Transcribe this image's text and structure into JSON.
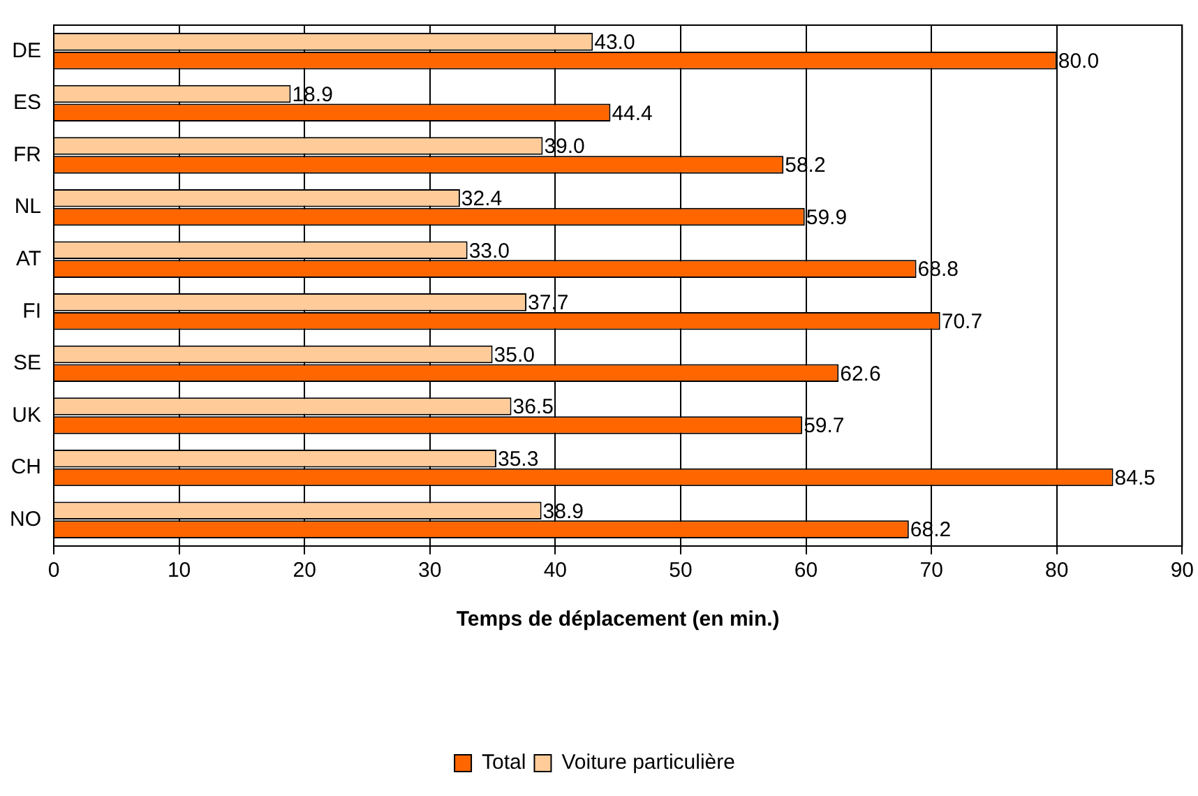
{
  "chart_data": {
    "type": "bar",
    "orientation": "horizontal",
    "xlabel": "Temps de déplacement (en min.)",
    "categories": [
      "DE",
      "ES",
      "FR",
      "NL",
      "AT",
      "FI",
      "SE",
      "UK",
      "CH",
      "NO"
    ],
    "series": [
      {
        "name": "Voiture particulière",
        "color": "#ffcc99",
        "values": [
          43.0,
          18.9,
          39.0,
          32.4,
          33.0,
          37.7,
          35.0,
          36.5,
          35.3,
          38.9
        ],
        "value_labels": [
          "43.0",
          "18.9",
          "39.0",
          "32.4",
          "33.0",
          "37.7",
          "35.0",
          "36.5",
          "35.3",
          "38.9"
        ]
      },
      {
        "name": "Total",
        "color": "#ff6600",
        "values": [
          80.0,
          44.4,
          58.2,
          59.9,
          68.8,
          70.7,
          62.6,
          59.7,
          84.5,
          68.2
        ],
        "value_labels": [
          "80.0",
          "44.4",
          "58.2",
          "59.9",
          "68.8",
          "70.7",
          "62.6",
          "59.7",
          "84.5",
          "68.2"
        ]
      }
    ],
    "xlim": [
      0,
      90
    ],
    "xticks": [
      0,
      10,
      20,
      30,
      40,
      50,
      60,
      70,
      80,
      90
    ],
    "grid": "x",
    "legend": "bottom"
  }
}
